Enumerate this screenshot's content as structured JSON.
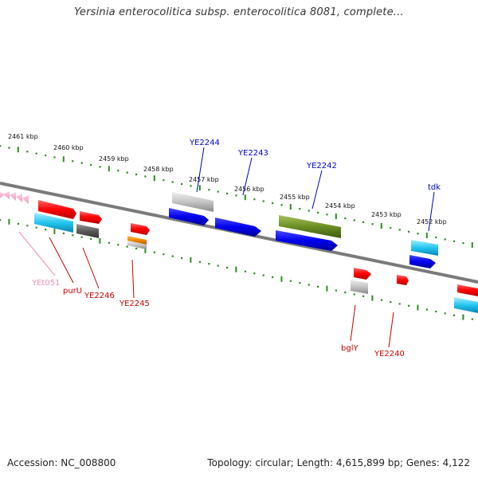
{
  "title": "Yersinia enterocolitica subsp. enterocolitica 8081, complete...",
  "footer": {
    "accession": "Accession: NC_008800",
    "summary": "Topology: circular; Length: 4,615,899 bp; Genes: 4,122"
  },
  "colors": {
    "backbone": "#7a7a7a",
    "ticks": "#2e8b22",
    "label_blue": "#0000c8",
    "label_red": "#cc0000",
    "label_pink": "#f090b0"
  },
  "kbp_labels": [
    "2461 kbp",
    "2460 kbp",
    "2459 kbp",
    "2458 kbp",
    "2457 kbp",
    "2456 kbp",
    "2455 kbp",
    "2454 kbp",
    "2453 kbp",
    "2452 kbp"
  ],
  "gene_labels": [
    "YE2244",
    "YE2243",
    "YE2242",
    "tdk",
    "YEt051",
    "purU",
    "YE2246",
    "YE2245",
    "bglY",
    "YE2240"
  ]
}
